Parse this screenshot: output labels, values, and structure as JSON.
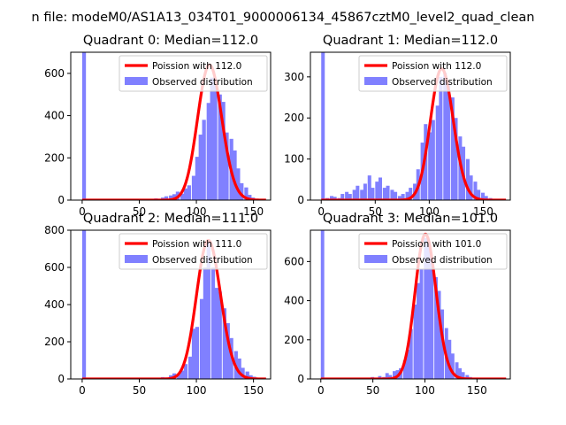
{
  "figure": {
    "suptitle": "n file: modeM0/AS1A13_034T01_9000006134_45867cztM0_level2_quad_clean"
  },
  "colors": {
    "observed": "#8080ff",
    "poisson": "#ff0000"
  },
  "chart_data": [
    {
      "type": "bar",
      "title": "Quadrant 0: Median=112.0",
      "median": 112.0,
      "xlim": [
        -10,
        165
      ],
      "ylim": [
        0,
        700
      ],
      "xticks": [
        0,
        50,
        100,
        150
      ],
      "yticks": [
        0,
        200,
        400,
        600
      ],
      "legend": {
        "placement": "top-right",
        "poisson_label": "Poission with 112.0",
        "observed_label": "Observed distribution"
      },
      "poisson_mean": 112.0,
      "poisson_scale": 640,
      "hist_bin_width": 3.3,
      "hist": [
        {
          "x": 0,
          "y": 700
        },
        {
          "x": 63,
          "y": 8
        },
        {
          "x": 66,
          "y": 5
        },
        {
          "x": 69,
          "y": 12
        },
        {
          "x": 72,
          "y": 18
        },
        {
          "x": 76,
          "y": 22
        },
        {
          "x": 79,
          "y": 28
        },
        {
          "x": 82,
          "y": 40
        },
        {
          "x": 86,
          "y": 30
        },
        {
          "x": 89,
          "y": 55
        },
        {
          "x": 92,
          "y": 70
        },
        {
          "x": 96,
          "y": 115
        },
        {
          "x": 99,
          "y": 205
        },
        {
          "x": 102,
          "y": 310
        },
        {
          "x": 105,
          "y": 380
        },
        {
          "x": 109,
          "y": 460
        },
        {
          "x": 112,
          "y": 580
        },
        {
          "x": 115,
          "y": 560
        },
        {
          "x": 119,
          "y": 500
        },
        {
          "x": 122,
          "y": 465
        },
        {
          "x": 125,
          "y": 320
        },
        {
          "x": 129,
          "y": 290
        },
        {
          "x": 132,
          "y": 235
        },
        {
          "x": 135,
          "y": 150
        },
        {
          "x": 138,
          "y": 80
        },
        {
          "x": 142,
          "y": 60
        },
        {
          "x": 145,
          "y": 25
        },
        {
          "x": 148,
          "y": 12
        },
        {
          "x": 152,
          "y": 6
        }
      ]
    },
    {
      "type": "bar",
      "title": "Quadrant 1: Median=112.0",
      "median": 112.0,
      "xlim": [
        -10,
        175
      ],
      "ylim": [
        0,
        360
      ],
      "xticks": [
        0,
        50,
        100,
        150
      ],
      "yticks": [
        0,
        100,
        200,
        300
      ],
      "legend": {
        "placement": "top-right",
        "poisson_label": "Poission with 112.0",
        "observed_label": "Observed distribution"
      },
      "poisson_mean": 112.0,
      "poisson_scale": 320,
      "hist_bin_width": 3.3,
      "hist": [
        {
          "x": 0,
          "y": 360
        },
        {
          "x": 4,
          "y": 5
        },
        {
          "x": 8,
          "y": 10
        },
        {
          "x": 11,
          "y": 8
        },
        {
          "x": 15,
          "y": 5
        },
        {
          "x": 18,
          "y": 15
        },
        {
          "x": 22,
          "y": 20
        },
        {
          "x": 25,
          "y": 15
        },
        {
          "x": 29,
          "y": 25
        },
        {
          "x": 32,
          "y": 35
        },
        {
          "x": 36,
          "y": 25
        },
        {
          "x": 39,
          "y": 40
        },
        {
          "x": 43,
          "y": 60
        },
        {
          "x": 46,
          "y": 30
        },
        {
          "x": 50,
          "y": 45
        },
        {
          "x": 53,
          "y": 55
        },
        {
          "x": 57,
          "y": 30
        },
        {
          "x": 60,
          "y": 35
        },
        {
          "x": 64,
          "y": 25
        },
        {
          "x": 67,
          "y": 20
        },
        {
          "x": 71,
          "y": 10
        },
        {
          "x": 74,
          "y": 15
        },
        {
          "x": 78,
          "y": 20
        },
        {
          "x": 81,
          "y": 30
        },
        {
          "x": 85,
          "y": 40
        },
        {
          "x": 88,
          "y": 75
        },
        {
          "x": 92,
          "y": 140
        },
        {
          "x": 95,
          "y": 185
        },
        {
          "x": 99,
          "y": 165
        },
        {
          "x": 102,
          "y": 195
        },
        {
          "x": 106,
          "y": 230
        },
        {
          "x": 109,
          "y": 300
        },
        {
          "x": 113,
          "y": 310
        },
        {
          "x": 116,
          "y": 285
        },
        {
          "x": 120,
          "y": 250
        },
        {
          "x": 123,
          "y": 200
        },
        {
          "x": 127,
          "y": 155
        },
        {
          "x": 130,
          "y": 130
        },
        {
          "x": 134,
          "y": 100
        },
        {
          "x": 137,
          "y": 60
        },
        {
          "x": 141,
          "y": 45
        },
        {
          "x": 144,
          "y": 25
        },
        {
          "x": 148,
          "y": 18
        },
        {
          "x": 151,
          "y": 10
        },
        {
          "x": 155,
          "y": 5
        }
      ]
    },
    {
      "type": "bar",
      "title": "Quadrant 2: Median=111.0",
      "median": 111.0,
      "xlim": [
        -10,
        165
      ],
      "ylim": [
        0,
        800
      ],
      "xticks": [
        0,
        50,
        100,
        150
      ],
      "yticks": [
        0,
        200,
        400,
        600,
        800
      ],
      "legend": {
        "placement": "top-right",
        "poisson_label": "Poission with 111.0",
        "observed_label": "Observed distribution"
      },
      "poisson_mean": 111.0,
      "poisson_scale": 745,
      "hist_bin_width": 3.3,
      "hist": [
        {
          "x": 0,
          "y": 800
        },
        {
          "x": 69,
          "y": 10
        },
        {
          "x": 73,
          "y": 8
        },
        {
          "x": 76,
          "y": 20
        },
        {
          "x": 79,
          "y": 30
        },
        {
          "x": 83,
          "y": 25
        },
        {
          "x": 86,
          "y": 45
        },
        {
          "x": 89,
          "y": 80
        },
        {
          "x": 93,
          "y": 120
        },
        {
          "x": 96,
          "y": 270
        },
        {
          "x": 99,
          "y": 280
        },
        {
          "x": 103,
          "y": 430
        },
        {
          "x": 106,
          "y": 600
        },
        {
          "x": 109,
          "y": 740
        },
        {
          "x": 113,
          "y": 600
        },
        {
          "x": 116,
          "y": 490
        },
        {
          "x": 119,
          "y": 470
        },
        {
          "x": 123,
          "y": 380
        },
        {
          "x": 126,
          "y": 300
        },
        {
          "x": 129,
          "y": 220
        },
        {
          "x": 133,
          "y": 150
        },
        {
          "x": 136,
          "y": 110
        },
        {
          "x": 139,
          "y": 60
        },
        {
          "x": 143,
          "y": 40
        },
        {
          "x": 146,
          "y": 20
        },
        {
          "x": 149,
          "y": 12
        },
        {
          "x": 153,
          "y": 6
        }
      ]
    },
    {
      "type": "bar",
      "title": "Quadrant 3: Median=101.0",
      "median": 101.0,
      "xlim": [
        -10,
        182
      ],
      "ylim": [
        0,
        760
      ],
      "xticks": [
        0,
        50,
        100,
        150
      ],
      "yticks": [
        0,
        200,
        400,
        600
      ],
      "legend": {
        "placement": "top-right",
        "poisson_label": "Poission with 101.0",
        "observed_label": "Observed distribution"
      },
      "poisson_mean": 101.0,
      "poisson_scale": 740,
      "hist_bin_width": 3.3,
      "hist": [
        {
          "x": 0,
          "y": 760
        },
        {
          "x": 48,
          "y": 10
        },
        {
          "x": 55,
          "y": 15
        },
        {
          "x": 59,
          "y": 10
        },
        {
          "x": 62,
          "y": 30
        },
        {
          "x": 65,
          "y": 20
        },
        {
          "x": 69,
          "y": 40
        },
        {
          "x": 72,
          "y": 45
        },
        {
          "x": 75,
          "y": 55
        },
        {
          "x": 79,
          "y": 95
        },
        {
          "x": 82,
          "y": 150
        },
        {
          "x": 85,
          "y": 255
        },
        {
          "x": 89,
          "y": 380
        },
        {
          "x": 92,
          "y": 490
        },
        {
          "x": 95,
          "y": 560
        },
        {
          "x": 99,
          "y": 720
        },
        {
          "x": 102,
          "y": 690
        },
        {
          "x": 105,
          "y": 620
        },
        {
          "x": 109,
          "y": 520
        },
        {
          "x": 112,
          "y": 450
        },
        {
          "x": 115,
          "y": 355
        },
        {
          "x": 119,
          "y": 260
        },
        {
          "x": 122,
          "y": 200
        },
        {
          "x": 125,
          "y": 130
        },
        {
          "x": 129,
          "y": 85
        },
        {
          "x": 132,
          "y": 55
        },
        {
          "x": 135,
          "y": 35
        },
        {
          "x": 139,
          "y": 20
        },
        {
          "x": 142,
          "y": 10
        }
      ]
    }
  ]
}
